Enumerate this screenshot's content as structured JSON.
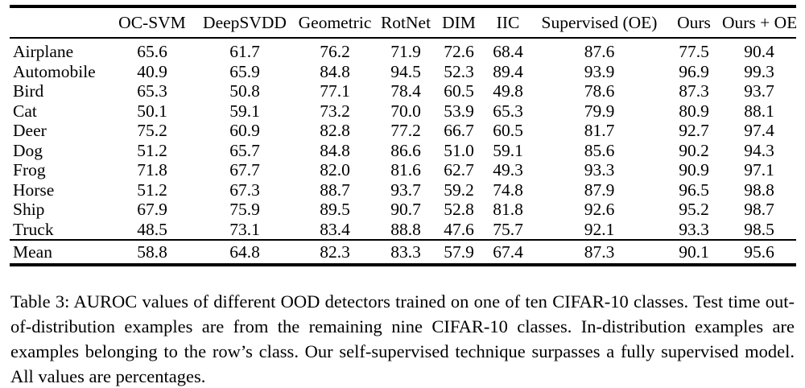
{
  "table": {
    "columns": [
      "",
      "OC-SVM",
      "DeepSVDD",
      "Geometric",
      "RotNet",
      "DIM",
      "IIC",
      "Supervised (OE)",
      "Ours",
      "Ours + OE"
    ],
    "rows": [
      {
        "label": "Airplane",
        "values": [
          "65.6",
          "61.7",
          "76.2",
          "71.9",
          "72.6",
          "68.4",
          "87.6",
          "77.5",
          "90.4"
        ]
      },
      {
        "label": "Automobile",
        "values": [
          "40.9",
          "65.9",
          "84.8",
          "94.5",
          "52.3",
          "89.4",
          "93.9",
          "96.9",
          "99.3"
        ]
      },
      {
        "label": "Bird",
        "values": [
          "65.3",
          "50.8",
          "77.1",
          "78.4",
          "60.5",
          "49.8",
          "78.6",
          "87.3",
          "93.7"
        ]
      },
      {
        "label": "Cat",
        "values": [
          "50.1",
          "59.1",
          "73.2",
          "70.0",
          "53.9",
          "65.3",
          "79.9",
          "80.9",
          "88.1"
        ]
      },
      {
        "label": "Deer",
        "values": [
          "75.2",
          "60.9",
          "82.8",
          "77.2",
          "66.7",
          "60.5",
          "81.7",
          "92.7",
          "97.4"
        ]
      },
      {
        "label": "Dog",
        "values": [
          "51.2",
          "65.7",
          "84.8",
          "86.6",
          "51.0",
          "59.1",
          "85.6",
          "90.2",
          "94.3"
        ]
      },
      {
        "label": "Frog",
        "values": [
          "71.8",
          "67.7",
          "82.0",
          "81.6",
          "62.7",
          "49.3",
          "93.3",
          "90.9",
          "97.1"
        ]
      },
      {
        "label": "Horse",
        "values": [
          "51.2",
          "67.3",
          "88.7",
          "93.7",
          "59.2",
          "74.8",
          "87.9",
          "96.5",
          "98.8"
        ]
      },
      {
        "label": "Ship",
        "values": [
          "67.9",
          "75.9",
          "89.5",
          "90.7",
          "52.8",
          "81.8",
          "92.6",
          "95.2",
          "98.7"
        ]
      },
      {
        "label": "Truck",
        "values": [
          "48.5",
          "73.1",
          "83.4",
          "88.8",
          "47.6",
          "75.7",
          "92.1",
          "93.3",
          "98.5"
        ]
      }
    ],
    "summary_row": {
      "label": "Mean",
      "values": [
        "58.8",
        "64.8",
        "82.3",
        "83.3",
        "57.9",
        "67.4",
        "87.3",
        "90.1",
        "95.6"
      ]
    }
  },
  "caption": "Table 3: AUROC values of different OOD detectors trained on one of ten CIFAR-10 classes. Test time out-of-distribution examples are from the remaining nine CIFAR-10 classes. In-distribution examples are examples belonging to the row’s class. Our self-supervised technique surpasses a fully supervised model. All values are percentages.",
  "colors": {
    "text": "#000000",
    "background": "#ffffff",
    "rule": "#000000"
  }
}
